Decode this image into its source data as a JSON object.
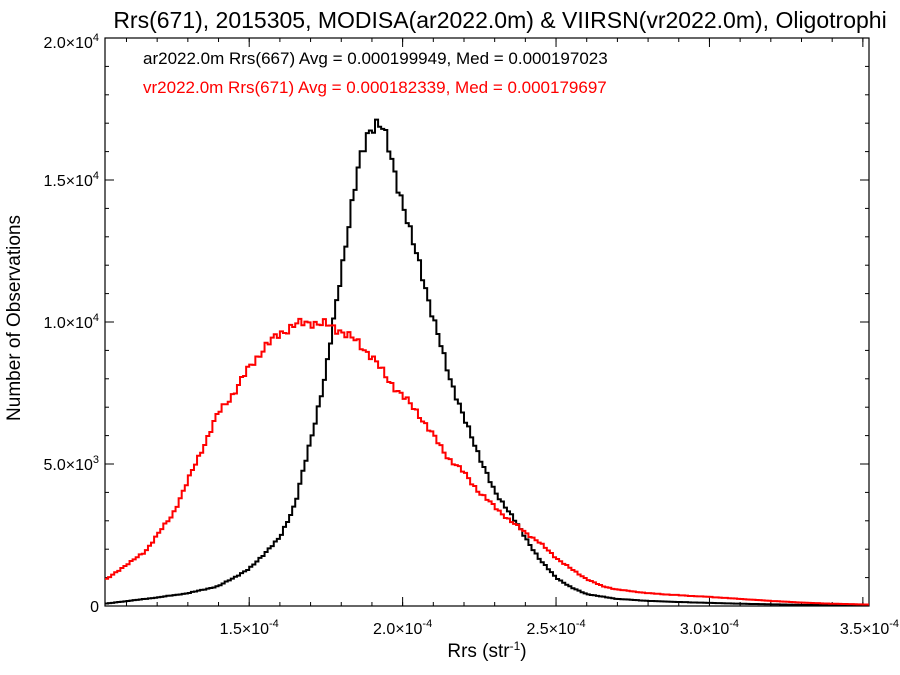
{
  "chart_data": {
    "type": "line",
    "title": "Rrs(671), 2015305, MODISA(ar2022.0m) & VIIRSN(vr2022.0m), Oligotrophi",
    "xlabel": {
      "base": "Rrs (str",
      "sup": "-1",
      "close": ")"
    },
    "ylabel": "Number of Observations",
    "xlim": [
      0.000103,
      0.000352
    ],
    "ylim": [
      0,
      20000
    ],
    "x_ticks": [
      {
        "value": 0.00015,
        "mant": "1.5",
        "exp": "-4"
      },
      {
        "value": 0.0002,
        "mant": "2.0",
        "exp": "-4"
      },
      {
        "value": 0.00025,
        "mant": "2.5",
        "exp": "-4"
      },
      {
        "value": 0.0003,
        "mant": "3.0",
        "exp": "-4"
      },
      {
        "value": 0.00035,
        "mant": "3.5",
        "exp": "-4"
      }
    ],
    "y_ticks": [
      {
        "value": 0,
        "mant": "0",
        "exp": ""
      },
      {
        "value": 5000,
        "mant": "5.0",
        "exp": "3"
      },
      {
        "value": 10000,
        "mant": "1.0",
        "exp": "4"
      },
      {
        "value": 15000,
        "mant": "1.5",
        "exp": "4"
      },
      {
        "value": 20000,
        "mant": "2.0",
        "exp": "4"
      }
    ],
    "series": [
      {
        "name": "ar2022.0m Rrs(667)",
        "legend_text": "ar2022.0m Rrs(667) Avg = 0.000199949, Med = 0.000197023",
        "color": "#000000",
        "x": [
          0.000103,
          0.00012,
          0.00013,
          0.00014,
          0.00015,
          0.00016,
          0.000165,
          0.00017,
          0.000175,
          0.00018,
          0.000183,
          0.000186,
          0.000189,
          0.000191,
          0.000193,
          0.000195,
          0.000197,
          0.0002,
          0.000203,
          0.000206,
          0.00021,
          0.000215,
          0.00022,
          0.000225,
          0.00023,
          0.000235,
          0.00024,
          0.000245,
          0.00025,
          0.000255,
          0.00026,
          0.000265,
          0.00027,
          0.00028,
          0.00029,
          0.0003,
          0.00031,
          0.00032,
          0.00033,
          0.00034,
          0.000352
        ],
        "y": [
          80,
          300,
          450,
          700,
          1300,
          2400,
          3600,
          5800,
          8200,
          11800,
          13800,
          15600,
          16800,
          17000,
          16900,
          16300,
          15500,
          14200,
          12900,
          11900,
          10100,
          8200,
          6600,
          5300,
          4000,
          3300,
          2400,
          1600,
          1000,
          650,
          420,
          330,
          250,
          180,
          140,
          110,
          80,
          60,
          40,
          30,
          20
        ]
      },
      {
        "name": "vr2022.0m Rrs(671)",
        "legend_text": "vr2022.0m Rrs(671) Avg = 0.000182339, Med = 0.000179697",
        "color": "#ff0000",
        "x": [
          0.000103,
          0.000108,
          0.000112,
          0.000116,
          0.00012,
          0.000125,
          0.00013,
          0.000135,
          0.00014,
          0.000145,
          0.00015,
          0.000155,
          0.00016,
          0.000165,
          0.00017,
          0.000175,
          0.00018,
          0.000185,
          0.00019,
          0.000195,
          0.0002,
          0.000205,
          0.00021,
          0.000215,
          0.00022,
          0.000225,
          0.00023,
          0.000235,
          0.00024,
          0.000245,
          0.00025,
          0.000255,
          0.00026,
          0.000265,
          0.00027,
          0.00028,
          0.00029,
          0.0003,
          0.00031,
          0.00032,
          0.00033,
          0.00034,
          0.000352
        ],
        "y": [
          900,
          1300,
          1600,
          1900,
          2500,
          3200,
          4400,
          5600,
          6800,
          7500,
          8400,
          9100,
          9600,
          9900,
          10000,
          9900,
          9700,
          9300,
          8800,
          8000,
          7400,
          6800,
          6000,
          5200,
          4700,
          4000,
          3500,
          3000,
          2600,
          2200,
          1700,
          1300,
          950,
          700,
          580,
          450,
          380,
          320,
          250,
          180,
          120,
          80,
          50
        ]
      }
    ],
    "legend_position": "top-left",
    "grid": false
  }
}
